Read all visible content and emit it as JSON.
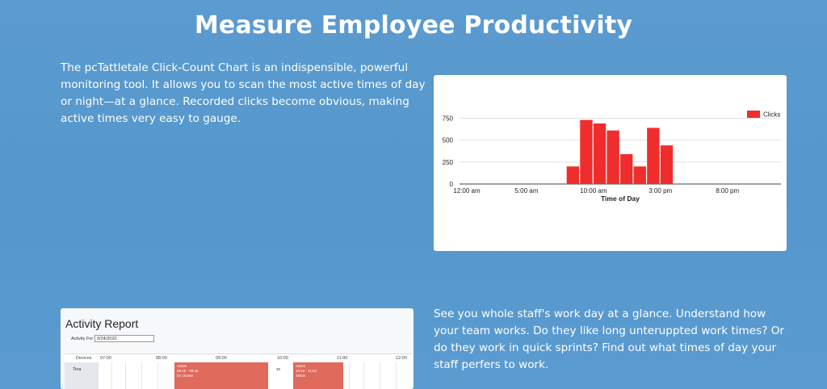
{
  "page": {
    "title": "Measure Employee Productivity",
    "intro": "The pcTattletale Click-Count Chart is an indispensible, powerful monitoring tool. It allows you to scan the most active times of day or night—at a glance. Recorded clicks become obvious, making active times very easy to gauge.",
    "outro": "See you whole staff's work day at a glance. Understand how your team works. Do they like long unteruppted work times? Or do they work in quick sprints? Find out what times of day your staff perfers to work."
  },
  "chart_data": {
    "type": "bar",
    "title": "",
    "xlabel": "Time of Day",
    "ylabel": "",
    "series": [
      {
        "name": "Clicks",
        "color": "#f02d2d"
      }
    ],
    "x_ticks": [
      "12:00 am",
      "5:00 am",
      "10:00 am",
      "3:00 pm",
      "8:00 pm"
    ],
    "y_ticks": [
      "0",
      "250",
      "500",
      "750"
    ],
    "ylim": [
      0,
      800
    ],
    "hours": [
      8,
      9,
      10,
      11,
      12,
      13,
      14,
      15
    ],
    "values": [
      200,
      730,
      690,
      610,
      340,
      200,
      640,
      440
    ],
    "grid": true,
    "legend": "top-right"
  },
  "report": {
    "title": "Activity Report",
    "activity_for_label": "Activity For",
    "date_value": "9/24/2020",
    "header_labels": [
      "Devices",
      "07:00",
      "08:00",
      "09:00",
      "10:00",
      "11:00",
      "12:00"
    ],
    "row_label": "Tina",
    "blocks": [
      {
        "status": "Active",
        "range": "08:15 - 09:45",
        "duration": "for 1hrs6s"
      },
      {
        "status": "Active",
        "range": "10:15 - 11:54",
        "duration": "49min"
      }
    ],
    "small_number": "30"
  }
}
